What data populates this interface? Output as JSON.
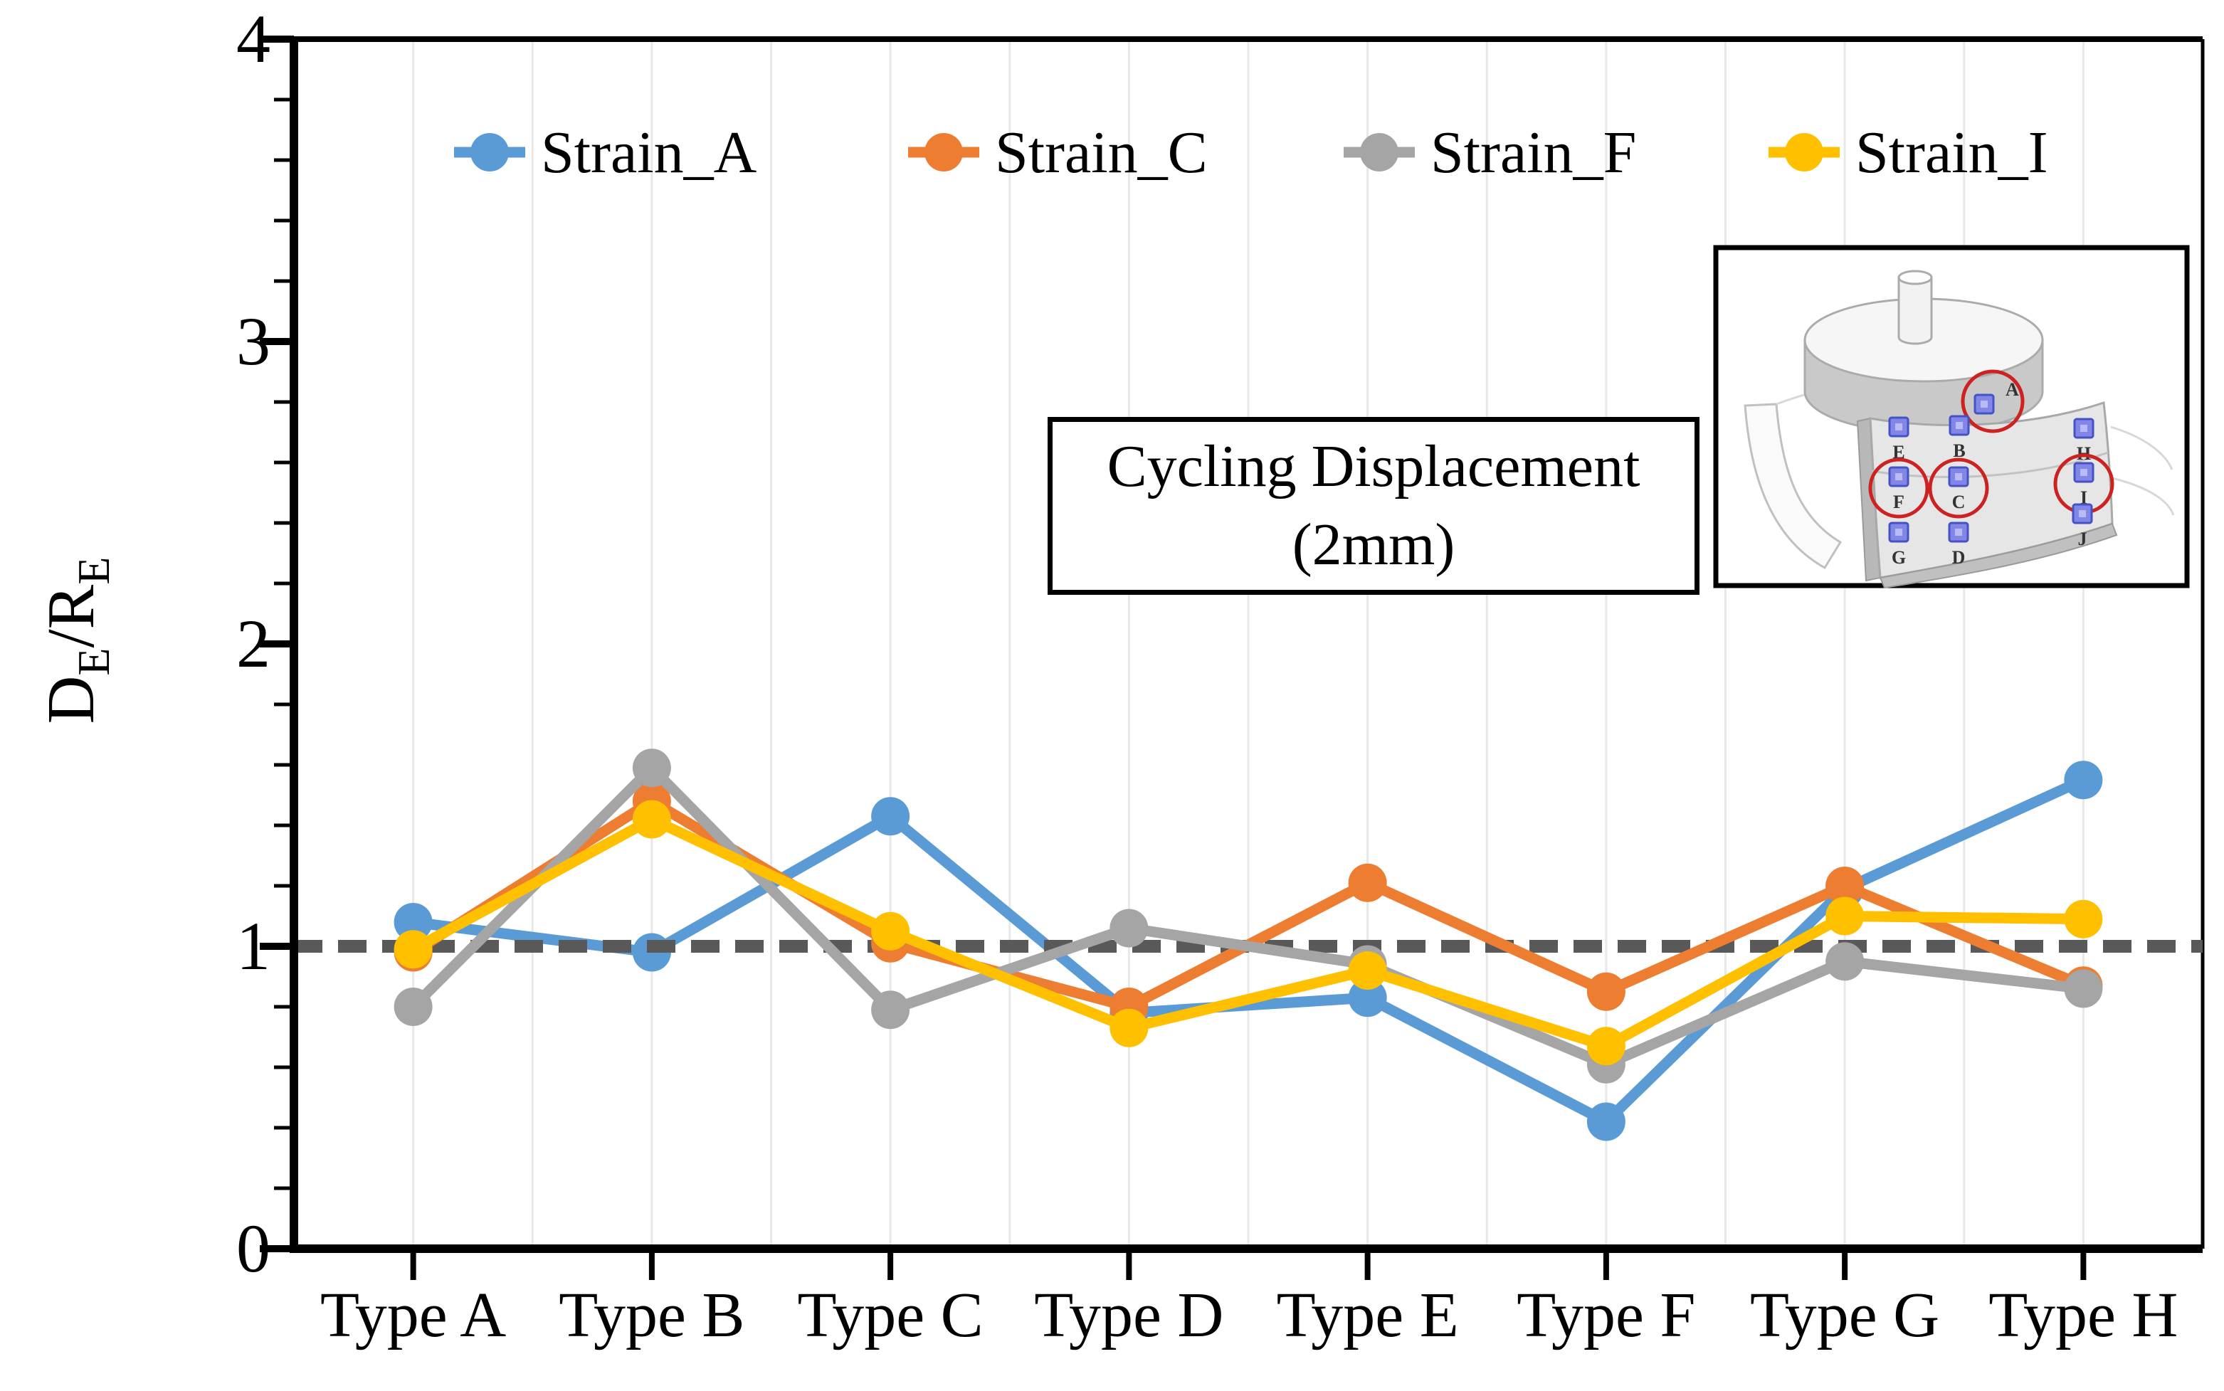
{
  "chart_data": {
    "type": "line",
    "title": "",
    "categories": [
      "Type A",
      "Type B",
      "Type C",
      "Type D",
      "Type E",
      "Type F",
      "Type G",
      "Type H"
    ],
    "series": [
      {
        "name": "Strain_A",
        "color": "#5B9BD5",
        "values": [
          1.08,
          0.98,
          1.43,
          0.78,
          0.83,
          0.42,
          1.19,
          1.55
        ]
      },
      {
        "name": "Strain_C",
        "color": "#ED7D31",
        "values": [
          0.98,
          1.48,
          1.01,
          0.8,
          1.21,
          0.85,
          1.2,
          0.87
        ]
      },
      {
        "name": "Strain_F",
        "color": "#A5A5A5",
        "values": [
          0.8,
          1.59,
          0.79,
          1.06,
          0.94,
          0.61,
          0.95,
          0.86
        ]
      },
      {
        "name": "Strain_I",
        "color": "#FFC000",
        "values": [
          0.99,
          1.42,
          1.05,
          0.73,
          0.92,
          0.67,
          1.1,
          1.09
        ]
      }
    ],
    "xlabel": "",
    "ylabel": "D_E/R_E",
    "ylabel_parts": [
      {
        "t": "D",
        "sub": false
      },
      {
        "t": "E",
        "sub": true
      },
      {
        "t": "/",
        "sub": false
      },
      {
        "t": "R",
        "sub": false
      },
      {
        "t": "E",
        "sub": true
      }
    ],
    "ylim": [
      0,
      4
    ],
    "yticks": [
      0,
      1,
      2,
      3,
      4
    ],
    "minor_tick_step": 0.2,
    "grid": "vertical-only",
    "gridline_color": "#E8E8E8",
    "reference_line": 1,
    "reference_line_style": "dashed",
    "reference_line_color": "#595959",
    "legend_position": "top-center",
    "annotation_lines": [
      "Cycling Displacement",
      "(2mm)"
    ]
  },
  "inset": {
    "description": "cylinder-specimen-with-strain-gauge-positions",
    "square_color": "#8186E8",
    "square_inner_color": "#B9BCF2",
    "square_border": "#4553C2",
    "circle_color": "#CC2222",
    "gauges": [
      {
        "id": "A",
        "circled": true
      },
      {
        "id": "E",
        "circled": false
      },
      {
        "id": "B",
        "circled": false
      },
      {
        "id": "H",
        "circled": false
      },
      {
        "id": "F",
        "circled": true
      },
      {
        "id": "C",
        "circled": true
      },
      {
        "id": "I",
        "circled": true
      },
      {
        "id": "G",
        "circled": false
      },
      {
        "id": "D",
        "circled": false
      },
      {
        "id": "J",
        "circled": false
      }
    ]
  }
}
